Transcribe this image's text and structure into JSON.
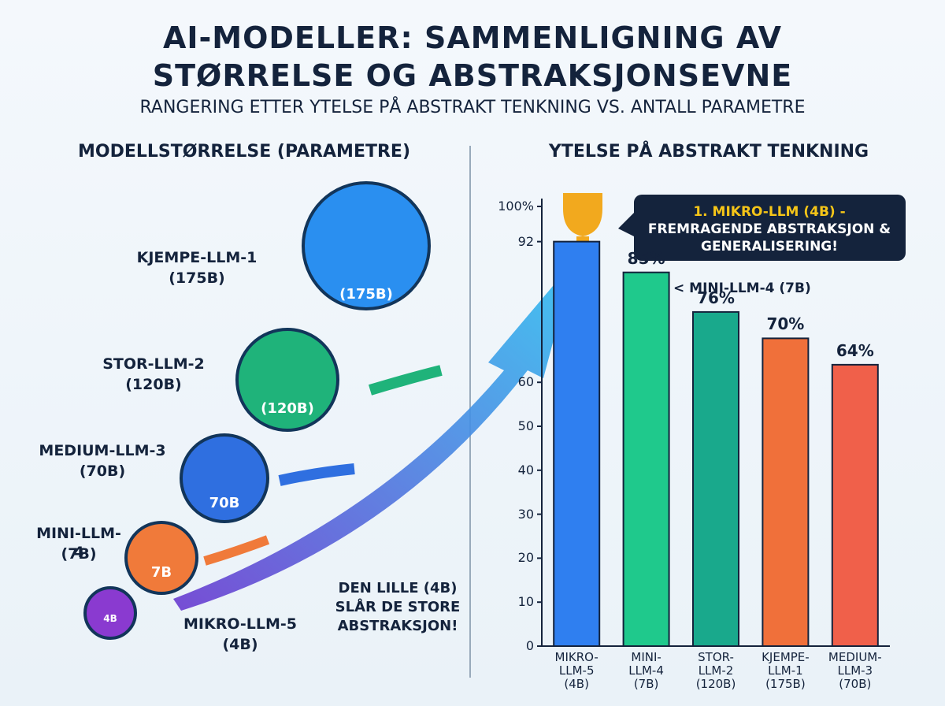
{
  "header": {
    "title": "AI-MODELLER: SAMMENLIGNING AV STØRRELSE OG ABSTRAKSJONSEVNE",
    "subtitle": "RANGERING ETTER YTELSE PÅ ABSTRAKT TENKNING VS. ANTALL PARAMETRE"
  },
  "left_panel": {
    "heading": "MODELLSTØRRELSE (PARAMETRE)",
    "models": [
      {
        "name": "KJEMPE-LLM-1",
        "size": "(175B)",
        "badge": "(175B)"
      },
      {
        "name": "STOR-LLM-2",
        "size": "(120B)",
        "badge": "(120B)"
      },
      {
        "name": "MEDIUM-LLM-3",
        "size": "(70B)",
        "badge": "70B"
      },
      {
        "name": "MINI-LLM-4",
        "size": "(7B)",
        "badge": "7B"
      },
      {
        "name": "MIKRO-LLM-5",
        "size": "(4B)",
        "badge": "4B"
      }
    ],
    "note": "DEN LILLE (4B) SLÅR DE STORE ABSTRAKSJON!"
  },
  "chart_data": {
    "type": "bar",
    "title": "YTELSE PÅ ABSTRAKT TENKNING",
    "categories": [
      "MIKRO-LLM-5 (4B)",
      "MINI-LLM-4 (7B)",
      "STOR-LLM-2 (120B)",
      "KJEMPE-LLM-1 (175B)",
      "MEDIUM-LLM-3 (70B)"
    ],
    "values": [
      92,
      85,
      76,
      70,
      64
    ],
    "value_labels": [
      null,
      "85%",
      "76%",
      "70%",
      "64%"
    ],
    "colors": [
      "#2f7ff0",
      "#1fc98c",
      "#19a98c",
      "#f0703a",
      "#f0604a"
    ],
    "ylim": [
      0,
      100
    ],
    "yticks": [
      0,
      10,
      20,
      30,
      40,
      50,
      60,
      92,
      {
        "value": 100,
        "label": "100%"
      }
    ],
    "callout": {
      "lead": "1. MIKRO-LLM (4B) -",
      "text": "FREMRAGENDE ABSTRAKSJON & GENERALISERING!"
    },
    "mini_note": "< MINI-LLM-4 (7B)"
  }
}
